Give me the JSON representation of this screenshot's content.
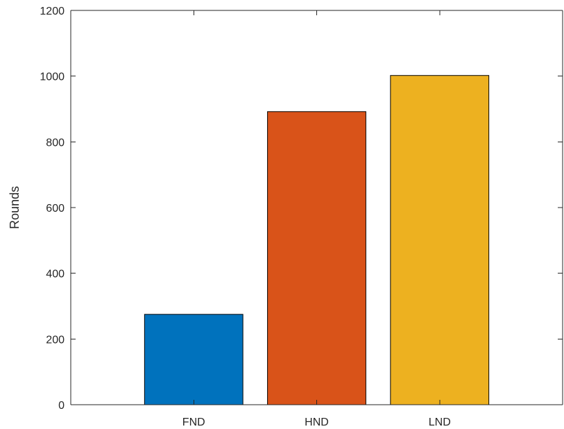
{
  "chart_data": {
    "type": "bar",
    "categories": [
      "FND",
      "HND",
      "LND"
    ],
    "values": [
      275,
      892,
      1002
    ],
    "colors": [
      "#0072BD",
      "#D95319",
      "#EDB120"
    ],
    "title": "",
    "xlabel": "",
    "ylabel": "Rounds",
    "ylim": [
      0,
      1200
    ],
    "yticks": [
      0,
      200,
      400,
      600,
      800,
      1000,
      1200
    ],
    "grid": false,
    "box": true
  }
}
